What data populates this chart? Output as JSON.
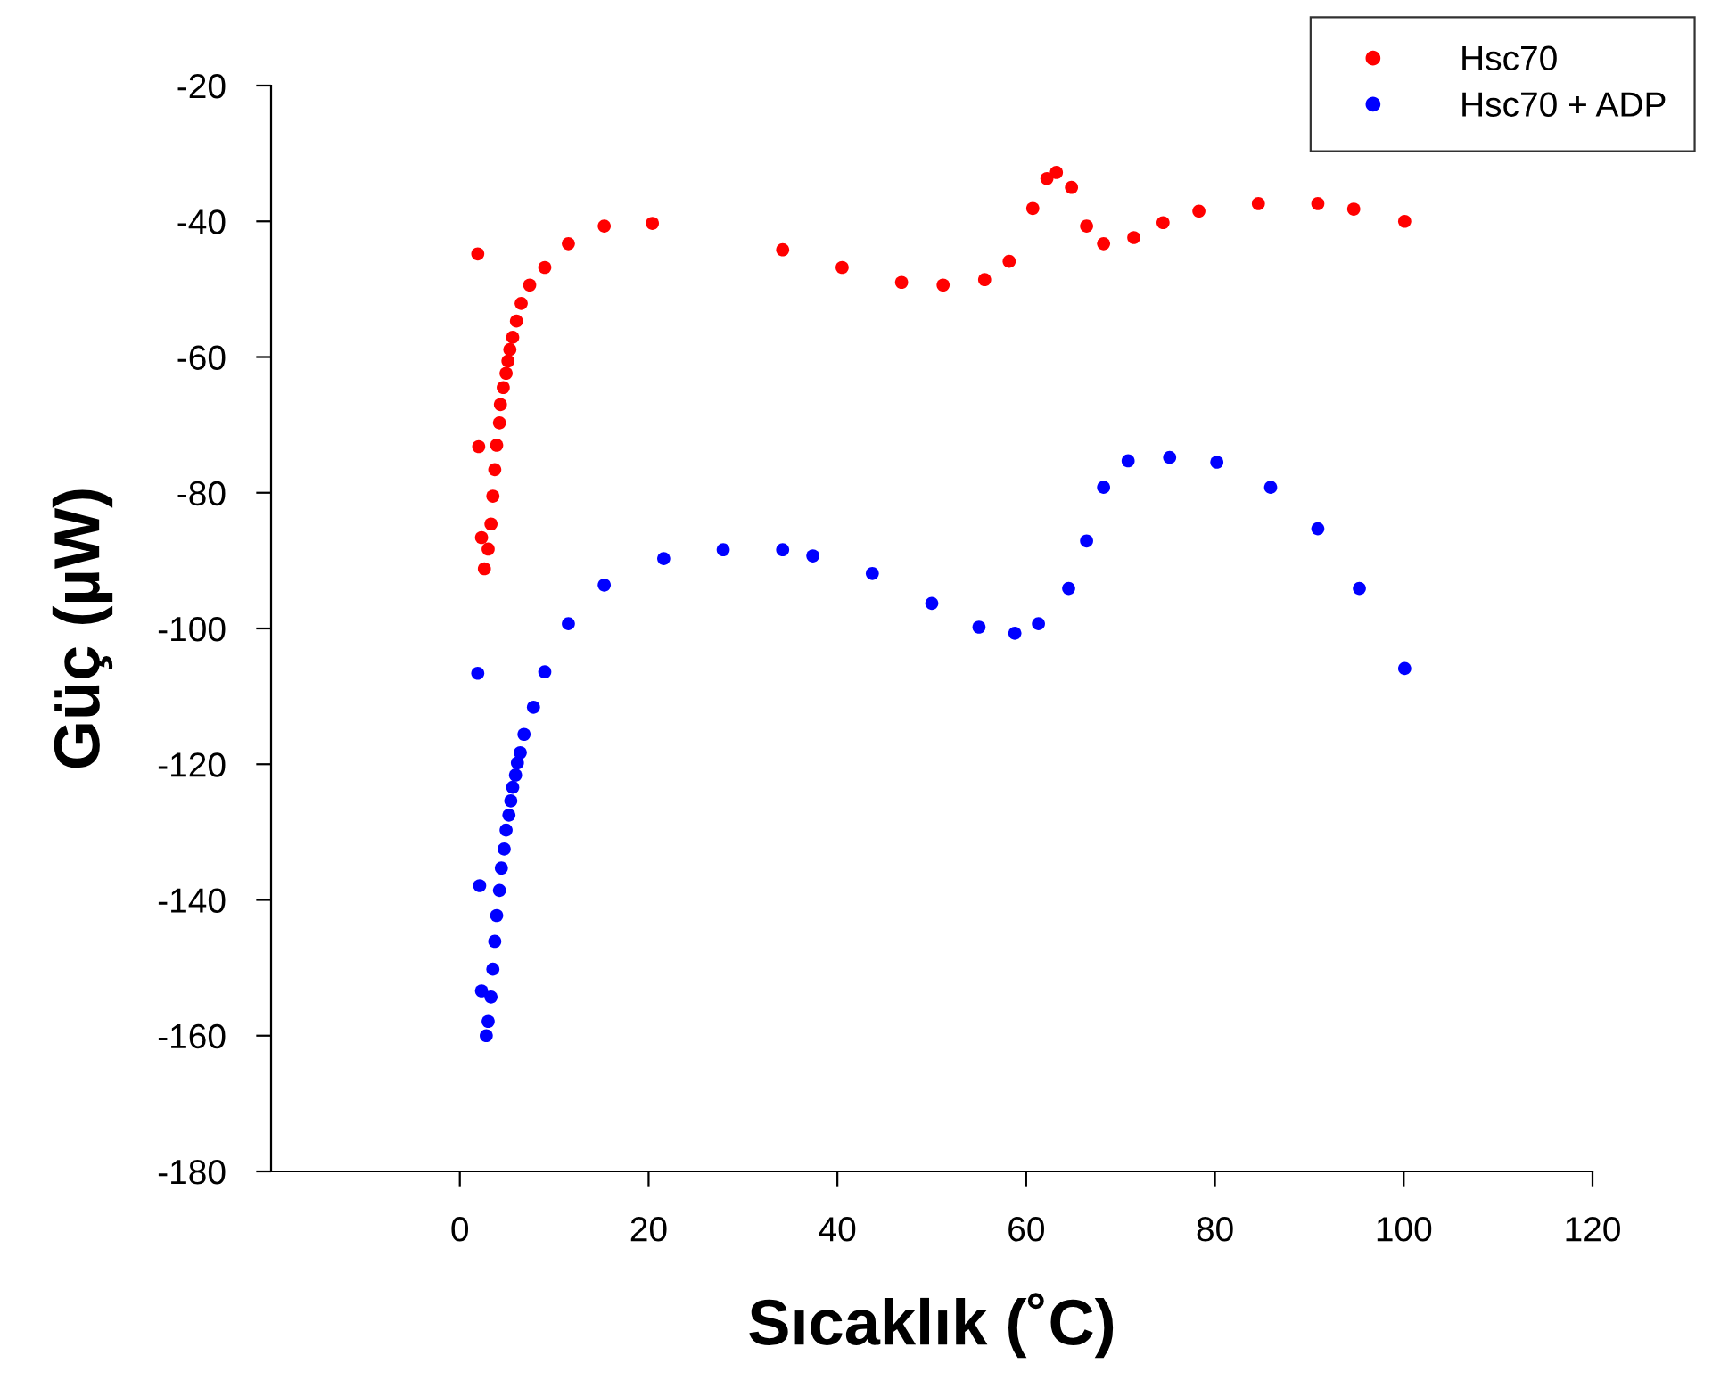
{
  "chart_data": {
    "type": "scatter",
    "xlabel": "Sıcaklık (˚C)",
    "ylabel": "Güç (µW)",
    "xlim": [
      -20,
      120
    ],
    "ylim": [
      -180,
      -20
    ],
    "xticks": [
      0,
      20,
      40,
      60,
      80,
      100,
      120
    ],
    "yticks": [
      -180,
      -160,
      -140,
      -120,
      -100,
      -80,
      -60,
      -40,
      -20
    ],
    "grid": false,
    "legend": "top right",
    "marker": "circle",
    "series": [
      {
        "name": "Hsc70",
        "color": "#ff0000",
        "x": [
          1.9,
          2.0,
          3.9,
          2.3,
          2.6,
          3.0,
          3.3,
          3.5,
          3.7,
          4.2,
          4.3,
          4.6,
          4.9,
          5.1,
          5.3,
          5.6,
          6.0,
          6.5,
          7.4,
          9.0,
          11.5,
          15.3,
          20.4,
          34.2,
          40.5,
          46.8,
          51.2,
          55.6,
          58.2,
          60.7,
          62.2,
          63.2,
          64.8,
          66.4,
          68.2,
          71.4,
          74.5,
          78.3,
          84.6,
          90.9,
          94.7,
          100.1
        ],
        "values": [
          -44.8,
          -73.2,
          -73.0,
          -86.6,
          -91.2,
          -88.3,
          -84.6,
          -80.5,
          -76.6,
          -69.7,
          -67.0,
          -64.5,
          -62.4,
          -60.6,
          -58.9,
          -57.1,
          -54.7,
          -52.1,
          -49.4,
          -46.8,
          -43.3,
          -40.7,
          -40.3,
          -44.2,
          -46.8,
          -49.0,
          -49.4,
          -48.6,
          -45.9,
          -38.1,
          -33.7,
          -32.8,
          -35.0,
          -40.7,
          -43.3,
          -42.4,
          -40.2,
          -38.5,
          -37.4,
          -37.4,
          -38.2,
          -40.0
        ]
      },
      {
        "name": "Hsc70 + ADP",
        "color": "#0000ff",
        "x": [
          1.9,
          2.1,
          4.2,
          3.9,
          3.7,
          3.5,
          2.3,
          3.3,
          3.0,
          2.8,
          4.4,
          4.7,
          4.9,
          5.2,
          5.4,
          5.6,
          5.9,
          6.1,
          6.4,
          6.8,
          7.8,
          9.0,
          11.5,
          15.3,
          21.6,
          27.9,
          34.2,
          37.4,
          43.7,
          50.0,
          55.0,
          58.8,
          61.3,
          64.5,
          66.4,
          68.2,
          70.8,
          75.2,
          80.2,
          85.9,
          90.9,
          95.3,
          100.1
        ],
        "values": [
          -106.6,
          -137.9,
          -138.6,
          -142.3,
          -146.1,
          -150.2,
          -153.4,
          -154.3,
          -157.9,
          -160.0,
          -135.3,
          -132.5,
          -129.7,
          -127.5,
          -125.4,
          -123.4,
          -121.6,
          -119.8,
          -118.3,
          -115.6,
          -111.6,
          -106.4,
          -99.3,
          -93.6,
          -89.7,
          -88.4,
          -88.4,
          -89.3,
          -91.9,
          -96.3,
          -99.8,
          -100.7,
          -99.3,
          -94.1,
          -87.1,
          -79.2,
          -75.3,
          -74.8,
          -75.5,
          -79.2,
          -85.3,
          -94.1,
          -105.9
        ]
      }
    ]
  }
}
